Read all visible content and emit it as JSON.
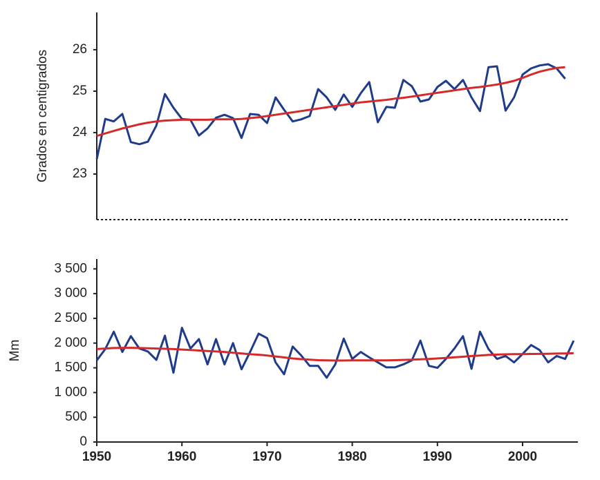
{
  "chart_data": [
    {
      "type": "line",
      "y_label": "Grados en centigrados",
      "x": [
        1950,
        1951,
        1952,
        1953,
        1954,
        1955,
        1956,
        1957,
        1958,
        1959,
        1960,
        1961,
        1962,
        1963,
        1964,
        1965,
        1966,
        1967,
        1968,
        1969,
        1970,
        1971,
        1972,
        1973,
        1974,
        1975,
        1976,
        1977,
        1978,
        1979,
        1980,
        1981,
        1982,
        1983,
        1984,
        1985,
        1986,
        1987,
        1988,
        1989,
        1990,
        1991,
        1992,
        1993,
        1994,
        1995,
        1996,
        1997,
        1998,
        1999,
        2000,
        2001,
        2002,
        2003,
        2004,
        2005
      ],
      "series": [
        {
          "color": "#1f3b8c",
          "values": [
            23.36,
            24.33,
            24.27,
            24.45,
            23.77,
            23.72,
            23.78,
            24.17,
            24.93,
            24.6,
            24.33,
            24.31,
            23.93,
            24.1,
            24.36,
            24.43,
            24.35,
            23.87,
            24.45,
            24.43,
            24.23,
            24.85,
            24.55,
            24.27,
            24.32,
            24.4,
            25.05,
            24.85,
            24.55,
            24.92,
            24.62,
            24.95,
            25.22,
            24.25,
            24.62,
            24.6,
            25.27,
            25.12,
            24.75,
            24.8,
            25.1,
            25.25,
            25.05,
            25.27,
            24.85,
            24.52,
            25.58,
            25.6,
            24.53,
            24.85,
            25.4,
            25.55,
            25.62,
            25.65,
            25.55,
            25.3
          ]
        },
        {
          "color": "#d42a2a",
          "values": [
            23.92,
            23.98,
            24.04,
            24.1,
            24.15,
            24.2,
            24.24,
            24.27,
            24.29,
            24.3,
            24.31,
            24.31,
            24.31,
            24.31,
            24.32,
            24.32,
            24.32,
            24.33,
            24.35,
            24.37,
            24.4,
            24.43,
            24.46,
            24.49,
            24.52,
            24.55,
            24.58,
            24.61,
            24.64,
            24.67,
            24.7,
            24.73,
            24.75,
            24.77,
            24.79,
            24.82,
            24.84,
            24.87,
            24.9,
            24.93,
            24.96,
            24.99,
            25.02,
            25.05,
            25.08,
            25.1,
            25.13,
            25.16,
            25.2,
            25.25,
            25.32,
            25.4,
            25.47,
            25.52,
            25.56,
            25.58
          ]
        }
      ],
      "xlim": [
        1950,
        2005.3
      ],
      "ylim": [
        21.9,
        26.9
      ],
      "yticks": [
        23,
        24,
        25,
        26
      ]
    },
    {
      "type": "line",
      "y_label": "Mm",
      "x": [
        1950,
        1951,
        1952,
        1953,
        1954,
        1955,
        1956,
        1957,
        1958,
        1959,
        1960,
        1961,
        1962,
        1963,
        1964,
        1965,
        1966,
        1967,
        1968,
        1969,
        1970,
        1971,
        1972,
        1973,
        1974,
        1975,
        1976,
        1977,
        1978,
        1979,
        1980,
        1981,
        1982,
        1983,
        1984,
        1985,
        1986,
        1987,
        1988,
        1989,
        1990,
        1991,
        1992,
        1993,
        1994,
        1995,
        1996,
        1997,
        1998,
        1999,
        2000,
        2001,
        2002,
        2003,
        2004,
        2005,
        2006
      ],
      "series": [
        {
          "color": "#1f3b8c",
          "values": [
            1650,
            1880,
            2230,
            1820,
            2140,
            1890,
            1830,
            1660,
            2150,
            1400,
            2310,
            1890,
            2080,
            1570,
            2080,
            1570,
            2000,
            1470,
            1820,
            2190,
            2100,
            1610,
            1370,
            1930,
            1750,
            1540,
            1540,
            1300,
            1570,
            2090,
            1680,
            1820,
            1710,
            1610,
            1510,
            1510,
            1570,
            1650,
            2050,
            1540,
            1500,
            1680,
            1890,
            2140,
            1480,
            2230,
            1880,
            1680,
            1740,
            1610,
            1780,
            1960,
            1860,
            1610,
            1740,
            1680,
            2050
          ]
        },
        {
          "color": "#d42a2a",
          "values": [
            1880,
            1890,
            1900,
            1905,
            1905,
            1900,
            1895,
            1890,
            1885,
            1880,
            1870,
            1860,
            1850,
            1840,
            1830,
            1820,
            1805,
            1790,
            1775,
            1765,
            1750,
            1730,
            1710,
            1690,
            1675,
            1665,
            1655,
            1650,
            1648,
            1648,
            1650,
            1650,
            1650,
            1650,
            1652,
            1655,
            1660,
            1665,
            1672,
            1680,
            1690,
            1700,
            1712,
            1725,
            1738,
            1750,
            1760,
            1768,
            1773,
            1776,
            1778,
            1780,
            1782,
            1785,
            1788,
            1792,
            1796
          ]
        }
      ],
      "xlim": [
        1950,
        2006.5
      ],
      "ylim": [
        0,
        3700
      ],
      "xticks": [
        1950,
        1960,
        1970,
        1980,
        1990,
        2000
      ],
      "yticks": [
        {
          "value": 0,
          "label": "0"
        },
        {
          "value": 500,
          "label": "500"
        },
        {
          "value": 1000,
          "label": "1 000"
        },
        {
          "value": 1500,
          "label": "1 500"
        },
        {
          "value": 2000,
          "label": "2 000"
        },
        {
          "value": 2500,
          "label": "2 500"
        },
        {
          "value": 3000,
          "label": "3 000"
        },
        {
          "value": 3500,
          "label": "3 500"
        }
      ]
    }
  ]
}
